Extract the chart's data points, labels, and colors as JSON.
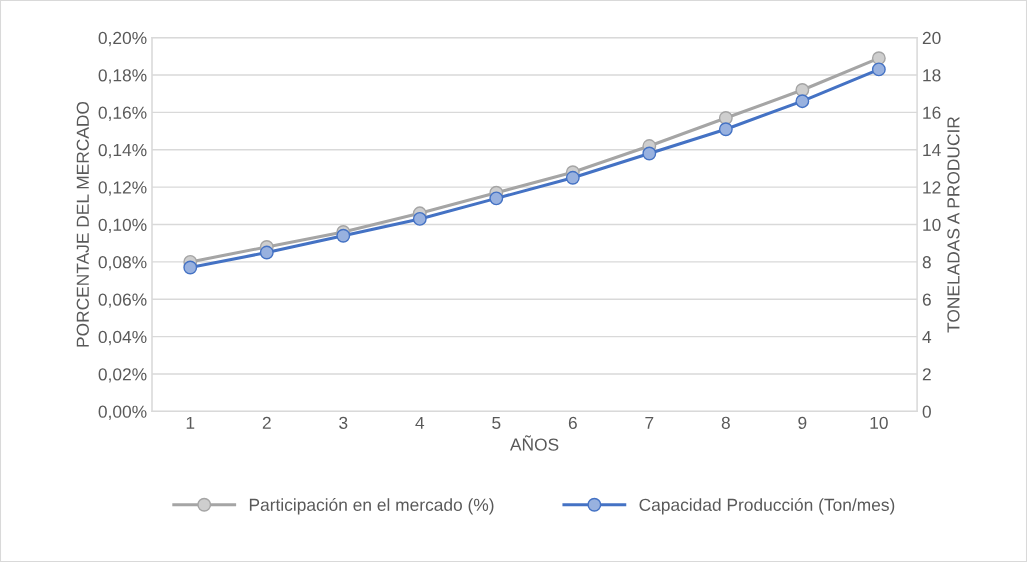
{
  "chart_data": {
    "type": "line",
    "xlabel": "AÑOS",
    "ylabel": "PORCENTAJE DEL MERCADO",
    "y2label": "TONELADAS A PRODUCIR",
    "categories": [
      "1",
      "2",
      "3",
      "4",
      "5",
      "6",
      "7",
      "8",
      "9",
      "10"
    ],
    "series": [
      {
        "name": "Participación en el mercado (%)",
        "color": "#a5a5a5",
        "values": [
          0.08,
          0.088,
          0.096,
          0.106,
          0.117,
          0.128,
          0.142,
          0.157,
          0.172,
          0.189
        ]
      },
      {
        "name": "Capacidad Producción (Ton/mes)",
        "color": "#4472c4",
        "axis": "y2",
        "values": [
          7.7,
          8.5,
          9.4,
          10.3,
          11.4,
          12.5,
          13.8,
          15.1,
          16.6,
          18.3
        ]
      }
    ],
    "ylim": [
      0,
      0.2
    ],
    "yticks": [
      {
        "value": 0,
        "label": "0,00%"
      },
      {
        "value": 0.02,
        "label": "0,02%"
      },
      {
        "value": 0.04,
        "label": "0,04%"
      },
      {
        "value": 0.06,
        "label": "0,06%"
      },
      {
        "value": 0.08,
        "label": "0,08%"
      },
      {
        "value": 0.1,
        "label": "0,10%"
      },
      {
        "value": 0.12,
        "label": "0,12%"
      },
      {
        "value": 0.14,
        "label": "0,14%"
      },
      {
        "value": 0.16,
        "label": "0,16%"
      },
      {
        "value": 0.18,
        "label": "0,18%"
      },
      {
        "value": 0.2,
        "label": "0,20%"
      }
    ],
    "y2lim": [
      0,
      20
    ],
    "y2ticks": [
      0,
      2,
      4,
      6,
      8,
      10,
      12,
      14,
      16,
      18,
      20
    ],
    "grid": "y",
    "legend": "bottom",
    "marker": "circle",
    "line_style": "solid"
  }
}
